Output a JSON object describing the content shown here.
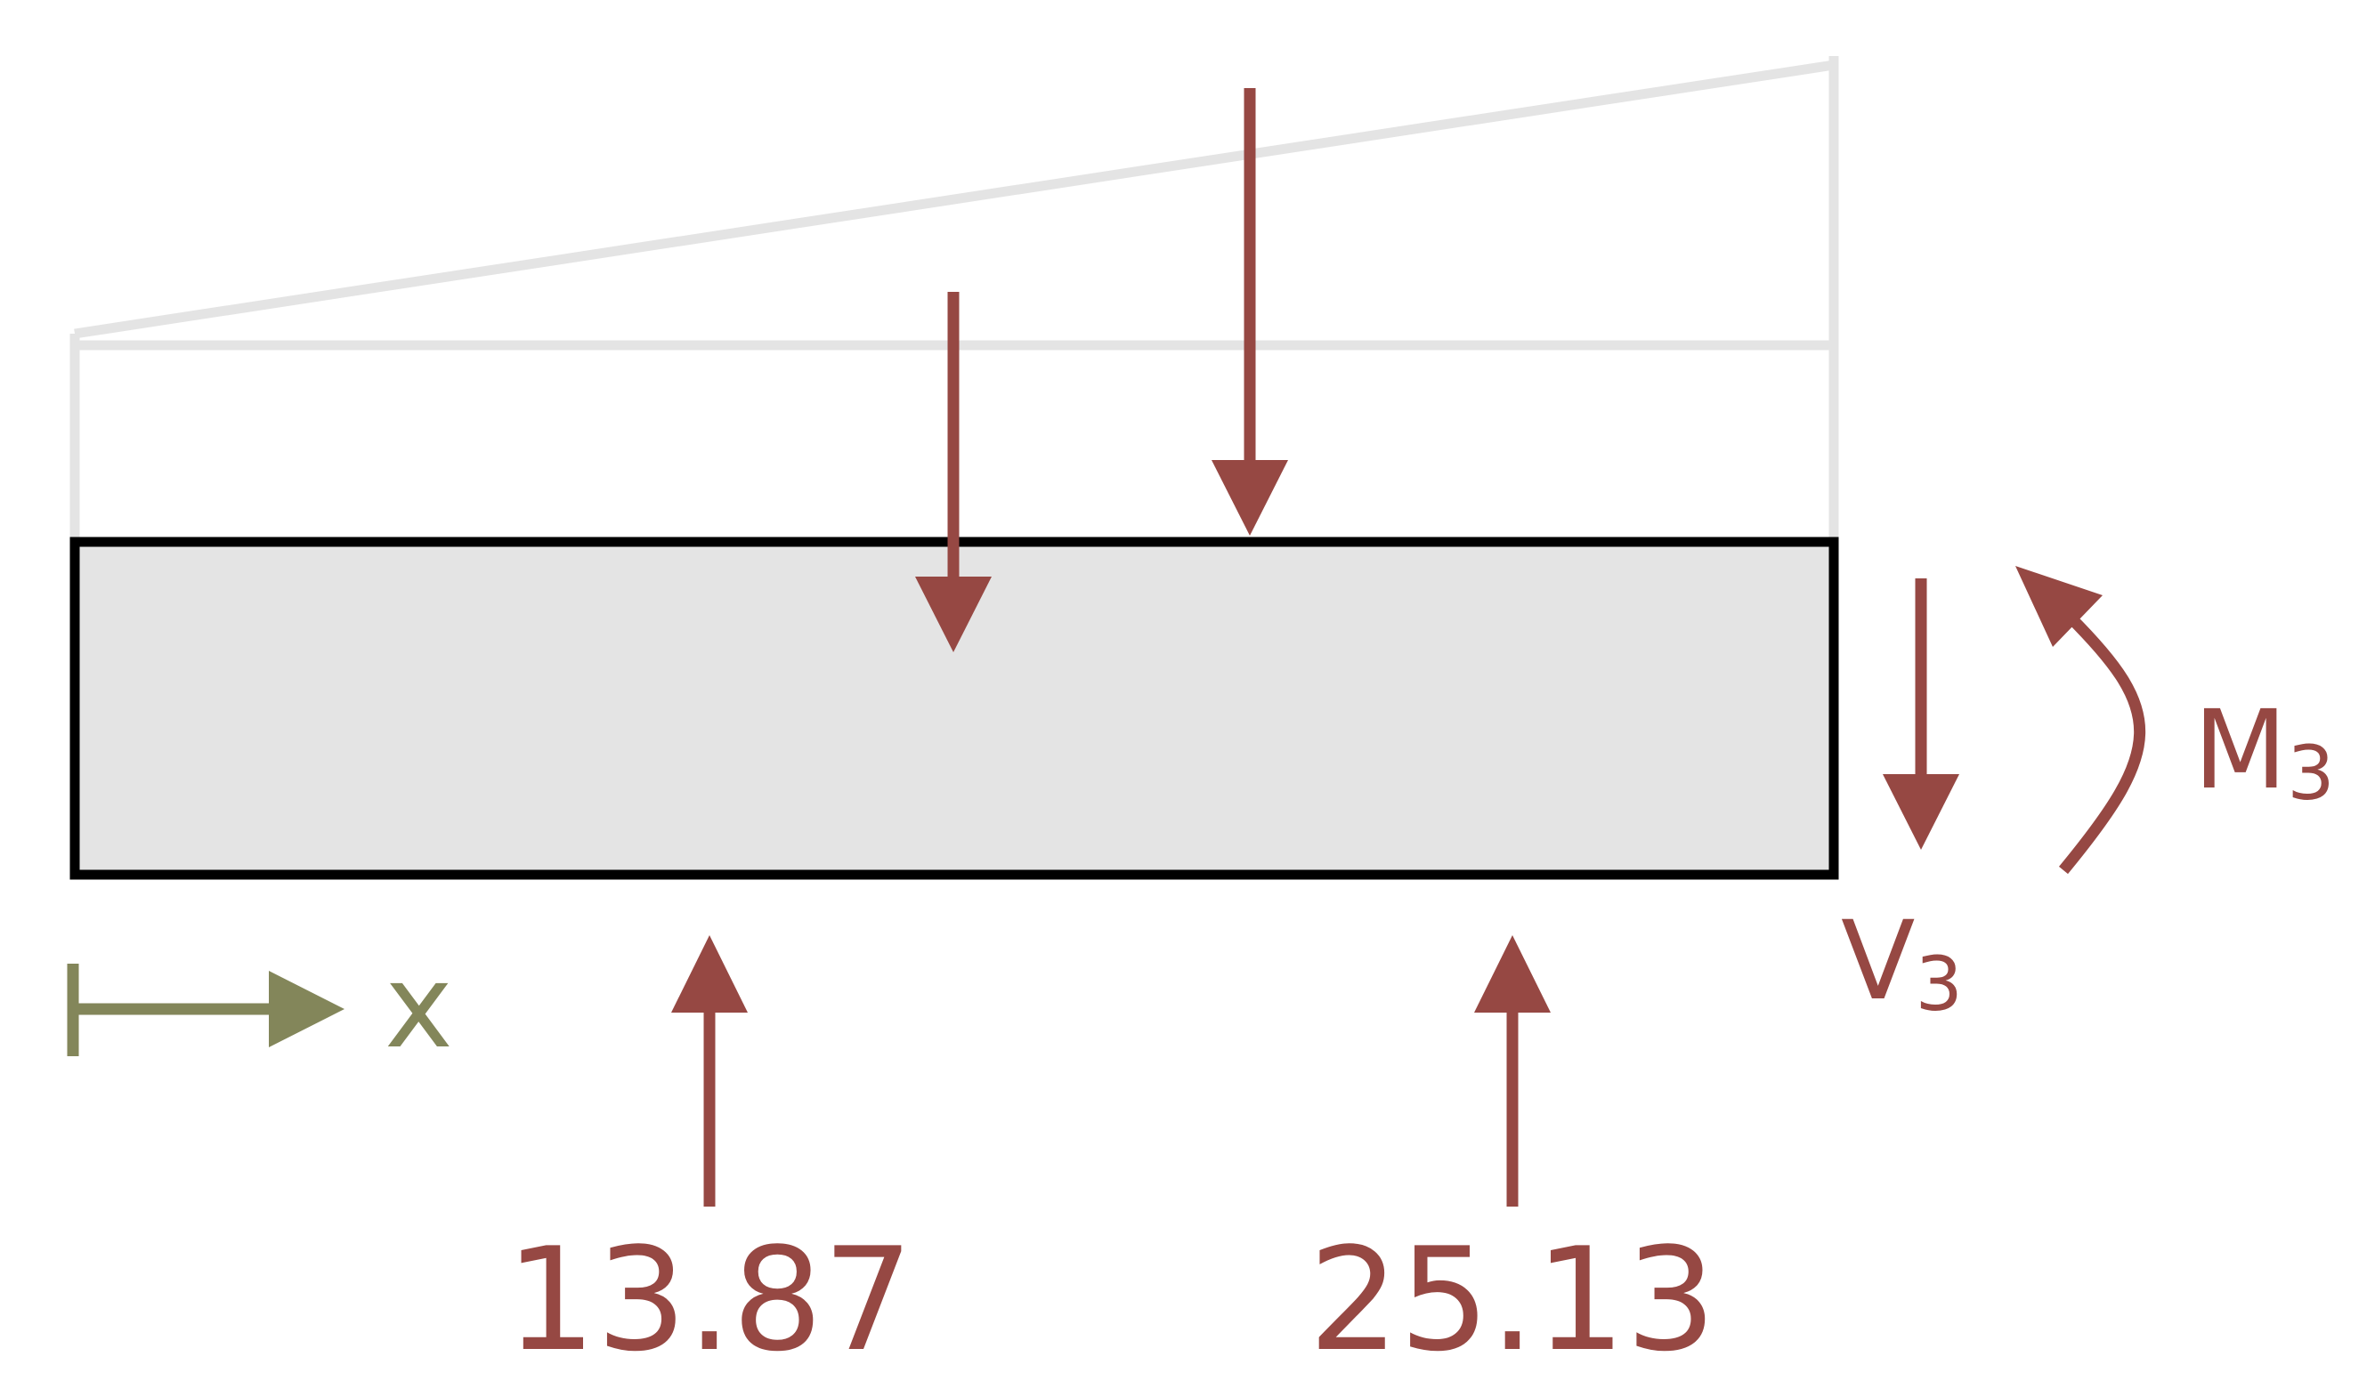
{
  "diagram": {
    "reaction_left": {
      "value": "13.87"
    },
    "reaction_right": {
      "value": "25.13"
    },
    "shear": {
      "symbol": "V",
      "subscript": "3"
    },
    "moment": {
      "symbol": "M",
      "subscript": "3"
    },
    "axis": {
      "symbol": "x"
    },
    "colors": {
      "force": "#964843",
      "axis": "#83865a",
      "beam_fill": "#e4e4e4",
      "beam_outline": "#000000",
      "load_outline": "#e4e4e4"
    }
  }
}
